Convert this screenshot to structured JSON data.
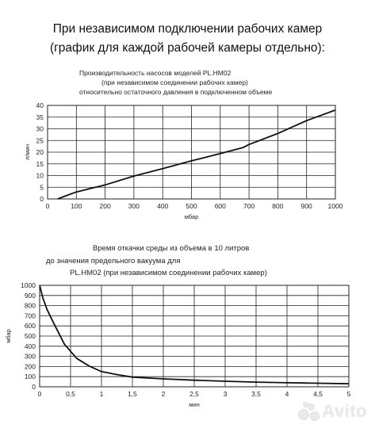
{
  "headings": {
    "line1": "При независимом подключении рабочих камер",
    "line2": "(график для каждой рабочей камеры отдельно):"
  },
  "watermark": {
    "text": "Avito",
    "icon": "avito-dots-icon"
  },
  "chart_data": [
    {
      "type": "line",
      "title_lines": [
        "Производительность насосов моделей PL.HM02",
        "(при независимом соединении рабочих камер)",
        "относительно остаточного давления в подключенном объеме"
      ],
      "xlabel": "мбар",
      "ylabel": "л/мин",
      "xlim": [
        0,
        1000
      ],
      "ylim": [
        0,
        40
      ],
      "x_ticks": [
        0,
        100,
        200,
        300,
        400,
        500,
        600,
        700,
        800,
        900,
        1000
      ],
      "y_ticks": [
        0,
        5,
        10,
        15,
        20,
        25,
        30,
        35,
        40
      ],
      "x_tick_labels": [
        "0",
        "100",
        "200",
        "300",
        "400",
        "500",
        "600",
        "700",
        "800",
        "900",
        "1000"
      ],
      "y_tick_labels": [
        "0",
        "5",
        "10",
        "15",
        "20",
        "25",
        "30",
        "35",
        "40"
      ],
      "grid": true,
      "series": [
        {
          "x": [
            35,
            60,
            100,
            150,
            200,
            300,
            400,
            500,
            600,
            680,
            700,
            800,
            900,
            1000
          ],
          "y": [
            0,
            1.2,
            3,
            4.5,
            6,
            9.8,
            13,
            16.3,
            19.4,
            22,
            23.3,
            28,
            33.5,
            38
          ]
        }
      ]
    },
    {
      "type": "line",
      "title_lines": [
        "Время откачки среды из объема в 10 литров",
        "до значения предельного вакуума для",
        "PL.HM02 (при независимом соединении рабочих камер)"
      ],
      "xlabel": "мин",
      "ylabel": "мбар",
      "xlim": [
        0,
        5
      ],
      "ylim": [
        0,
        1000
      ],
      "x_ticks": [
        0,
        0.5,
        1,
        1.5,
        2,
        2.5,
        3,
        3.5,
        4,
        4.5,
        5
      ],
      "y_ticks": [
        0,
        100,
        200,
        300,
        400,
        500,
        600,
        700,
        800,
        900,
        1000
      ],
      "x_tick_labels": [
        "0",
        "0,5",
        "1",
        "1,5",
        "2",
        "2,5",
        "3",
        "3,5",
        "4",
        "4,5",
        "5"
      ],
      "y_tick_labels": [
        "0",
        "100",
        "200",
        "300",
        "400",
        "500",
        "600",
        "700",
        "800",
        "900",
        "1000"
      ],
      "grid": true,
      "series": [
        {
          "x": [
            0,
            0.05,
            0.12,
            0.25,
            0.4,
            0.6,
            0.8,
            1.0,
            1.25,
            1.5,
            2.0,
            2.5,
            3.0,
            3.5,
            4.0,
            4.5,
            5.0
          ],
          "y": [
            1000,
            880,
            760,
            600,
            420,
            280,
            205,
            150,
            120,
            95,
            78,
            65,
            55,
            46,
            40,
            35,
            30
          ]
        }
      ]
    }
  ]
}
